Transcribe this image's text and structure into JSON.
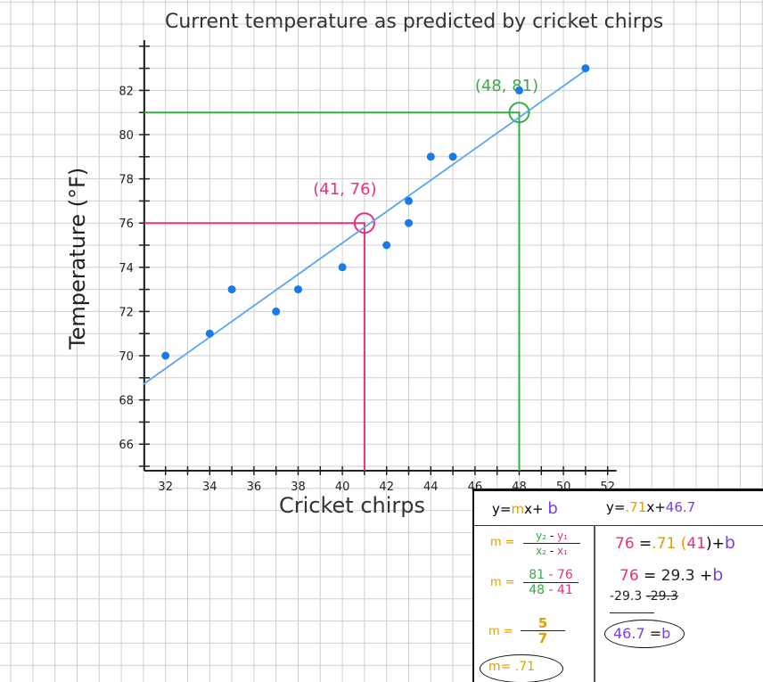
{
  "chart_data": {
    "type": "scatter",
    "title": "Current temperature as predicted by cricket chirps",
    "xlabel": "Cricket chirps",
    "ylabel": "Temperature (°F)",
    "xlim": [
      31,
      52
    ],
    "ylim": [
      65,
      84
    ],
    "x_ticks": [
      "32",
      "34",
      "36",
      "38",
      "40",
      "42",
      "44",
      "46",
      "48",
      "50",
      "52"
    ],
    "y_ticks": [
      "66",
      "68",
      "70",
      "72",
      "74",
      "76",
      "78",
      "80",
      "82"
    ],
    "grid": true,
    "points": [
      {
        "x": 32,
        "y": 70
      },
      {
        "x": 34,
        "y": 71
      },
      {
        "x": 35,
        "y": 73
      },
      {
        "x": 37,
        "y": 72
      },
      {
        "x": 38,
        "y": 73
      },
      {
        "x": 40,
        "y": 74
      },
      {
        "x": 42,
        "y": 75
      },
      {
        "x": 43,
        "y": 76
      },
      {
        "x": 43,
        "y": 77
      },
      {
        "x": 44,
        "y": 79
      },
      {
        "x": 45,
        "y": 79
      },
      {
        "x": 48,
        "y": 82
      },
      {
        "x": 51,
        "y": 83
      }
    ],
    "trend_line": {
      "slope": 0.71,
      "intercept": 46.7,
      "x_range": [
        31,
        51
      ]
    },
    "annotations": [
      {
        "label": "(41, 76)",
        "x": 41,
        "y": 76,
        "color": "#e8307a"
      },
      {
        "label": "(48, 81)",
        "x": 48,
        "y": 81,
        "color": "#3aa94a"
      }
    ],
    "colors": {
      "points": "#1a7be8",
      "line": "#5aa6f0",
      "grid": "#cfcfcf",
      "axis": "#222222"
    }
  },
  "work": {
    "general": {
      "y": "y=",
      "m": "m",
      "x": "x",
      "plus": "+",
      "b": "b"
    },
    "fitted": {
      "y": "y=",
      "m": ".71",
      "x": "x",
      "plus": "+",
      "b": "46.7"
    },
    "slope_steps": [
      {
        "lhs": "m =",
        "num_a": "y₂",
        "num_op": "-",
        "num_b": "y₁",
        "den_a": "x₂",
        "den_op": "-",
        "den_b": "x₁"
      },
      {
        "lhs": "m =",
        "num_a": "81",
        "num_op": "-",
        "num_b": "76",
        "den_a": "48",
        "den_op": "-",
        "den_b": "41"
      },
      {
        "lhs": "m =",
        "num": "5",
        "den": "7"
      },
      {
        "lhs": "m=",
        "value": ".71"
      }
    ],
    "intercept_steps": {
      "l1": {
        "y": "76",
        "eq": "=",
        "m": ".71",
        "po": "(",
        "x": "41",
        "pc": ")",
        "plus": "+",
        "b": "b"
      },
      "l2": {
        "y": "76",
        "eq": "=",
        "prod": "29.3",
        "plus": "+",
        "b": "b"
      },
      "l3": {
        "left": "-29.3",
        "right": "-29.3"
      },
      "result": {
        "b_val": "46.7",
        "eq": "=",
        "b": "b"
      }
    }
  }
}
